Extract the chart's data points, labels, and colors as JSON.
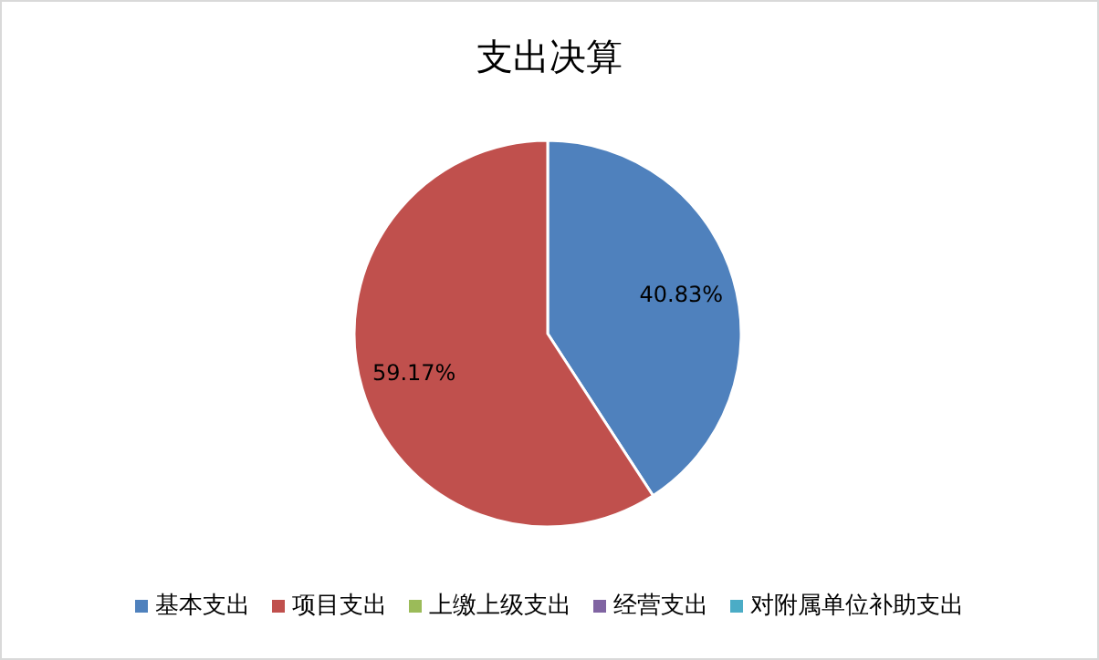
{
  "chart_data": {
    "type": "pie",
    "title": "支出决算",
    "categories": [
      "基本支出",
      "项目支出",
      "上缴上级支出",
      "经营支出",
      "对附属单位补助支出"
    ],
    "values": [
      40.83,
      59.17,
      0,
      0,
      0
    ],
    "colors": [
      "#4f81bd",
      "#c0504d",
      "#9bbb59",
      "#8064a2",
      "#4bacc6"
    ],
    "value_labels": [
      "40.83%",
      "59.17%",
      null,
      null,
      null
    ],
    "legend": "bottom"
  }
}
